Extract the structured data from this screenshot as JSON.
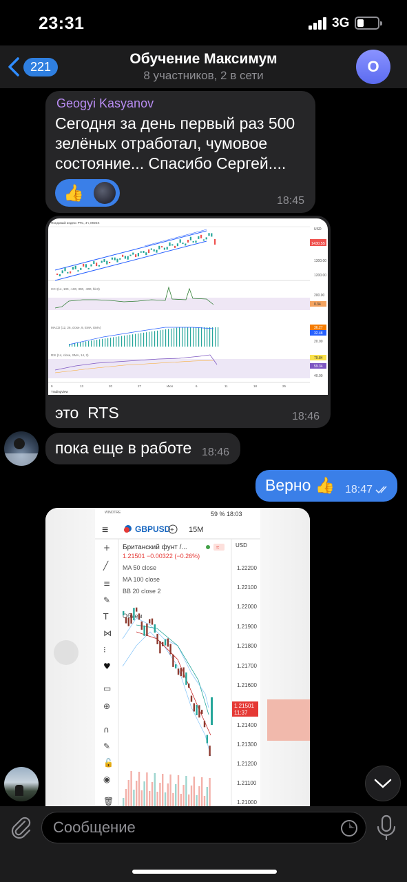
{
  "status_bar": {
    "time": "23:31",
    "network": "3G",
    "battery_level": 0.3
  },
  "header": {
    "back_count": "221",
    "title": "Обучение Максимум",
    "subtitle": "8 участников, 2 в сети",
    "avatar_letter": "O"
  },
  "messages": [
    {
      "sender": "Geogyi Kasyanov",
      "text": "Сегодня за день первый раз 500 зелёных отработал, чумовое состояние... Спасибо Сергей....",
      "reaction_emoji": "👍",
      "time": "18:45"
    },
    {
      "caption": "это  RTS",
      "time": "18:46",
      "chart": {
        "header": "Фондовый индекс РТС, 4ч, MOEX",
        "currency": "USD",
        "price_labels": [
          "1400.00",
          "1300.00",
          "1200.00"
        ],
        "current_price": "1430.55",
        "date_labels": [
          "9",
          "13",
          "20",
          "27",
          "Июл",
          "6",
          "11",
          "18",
          "25"
        ],
        "indicators": [
          {
            "name": "CCI (14, 100, -100, 300, -300, hlc3)",
            "values": [
              "200.00",
              "0.34",
              "-200.00"
            ]
          },
          {
            "name": "MACD (12, 26, close, 9, EMA, EMA)",
            "values": [
              "36.27",
              "32.48",
              "20.00"
            ]
          },
          {
            "name": "RSI (14, close, SMA, 14, 2)",
            "values": [
              "79.84",
              "59.34",
              "40.00"
            ]
          }
        ],
        "footer": "TradingView"
      }
    },
    {
      "text": "пока еще в работе",
      "time": "18:46"
    },
    {
      "text": "Верно 👍",
      "time": "18:47",
      "outgoing": true
    }
  ],
  "phone_screenshot": {
    "status": "59 %  18:03",
    "symbol": "GBPUSD",
    "timeframe": "15M",
    "instrument": "Британский фунт /...",
    "price_line": "1.21501 −0.00322 (−0.26%)",
    "overlays": [
      "MA 50 close",
      "MA 100 close",
      "BB 20 close 2",
      "Объем"
    ],
    "axis_currency": "USD",
    "axis_prices": [
      "1.22200",
      "1.22100",
      "1.22000",
      "1.21900",
      "1.21800",
      "1.21700",
      "1.21600",
      "1.21400",
      "1.21300",
      "1.21200",
      "1.21100",
      "1.21000"
    ],
    "current_price": "1.21501",
    "current_time": "11:37"
  },
  "input": {
    "placeholder": "Сообщение"
  }
}
